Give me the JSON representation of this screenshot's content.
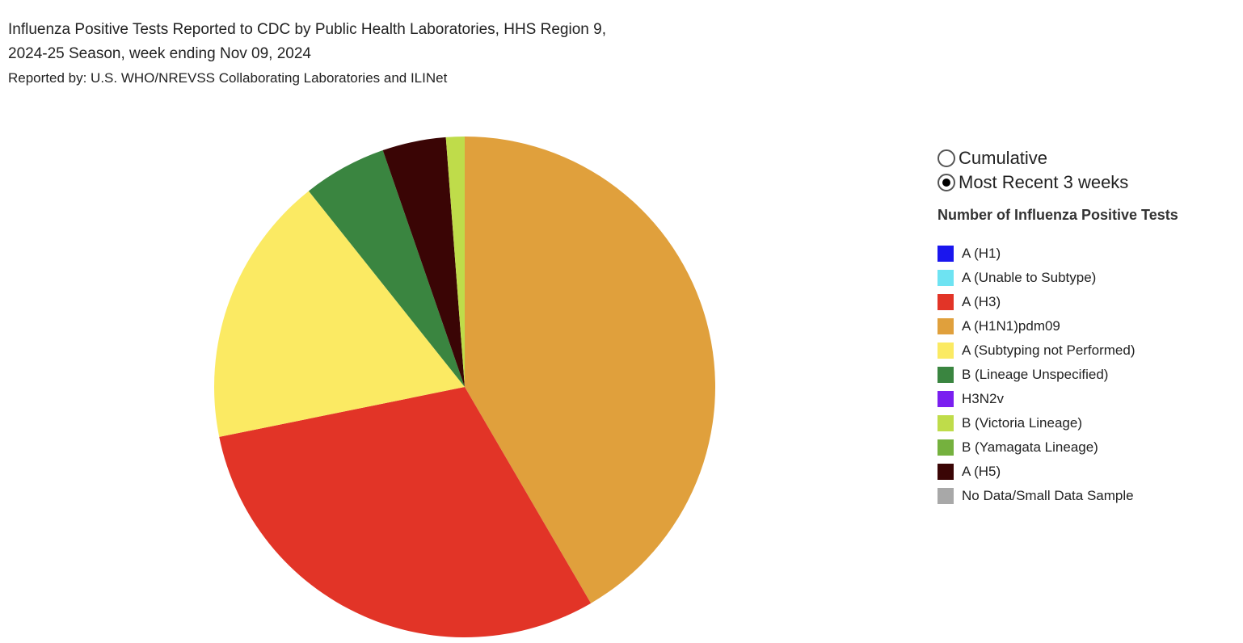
{
  "chart_data": {
    "type": "pie",
    "title": "Influenza Positive Tests Reported to CDC by Public Health Laboratories, HHS Region 9,",
    "title_line2": "2024-25 Season, week ending Nov 09, 2024",
    "subtitle": "Reported by: U.S. WHO/NREVSS Collaborating Laboratories and ILINet",
    "values": [
      41.6,
      30.2,
      17.5,
      5.4,
      4.1,
      1.2
    ],
    "colors": [
      "#e0a03c",
      "#e23427",
      "#fbea63",
      "#3a8540",
      "#3a0505",
      "#bfdc4a"
    ],
    "controls": [
      {
        "label": "Cumulative",
        "checked": false
      },
      {
        "label": "Most Recent 3 weeks",
        "checked": true
      }
    ],
    "legend": {
      "title": "Number of Influenza Positive Tests",
      "items": [
        {
          "name": "A (H1)",
          "color": "#1a16ee"
        },
        {
          "name": "A (Unable to Subtype)",
          "color": "#6ee3f2"
        },
        {
          "name": "A (H3)",
          "color": "#e23427"
        },
        {
          "name": "A (H1N1)pdm09",
          "color": "#e0a03c"
        },
        {
          "name": "A (Subtyping not Performed)",
          "color": "#fbea63"
        },
        {
          "name": "B (Lineage Unspecified)",
          "color": "#3a8540"
        },
        {
          "name": "H3N2v",
          "color": "#7a1ff0"
        },
        {
          "name": "B (Victoria Lineage)",
          "color": "#bfdc4a"
        },
        {
          "name": "B (Yamagata Lineage)",
          "color": "#75b13e"
        },
        {
          "name": "A (H5)",
          "color": "#3a0505"
        },
        {
          "name": "No Data/Small Data Sample",
          "color": "#a8a8a8"
        }
      ]
    }
  }
}
